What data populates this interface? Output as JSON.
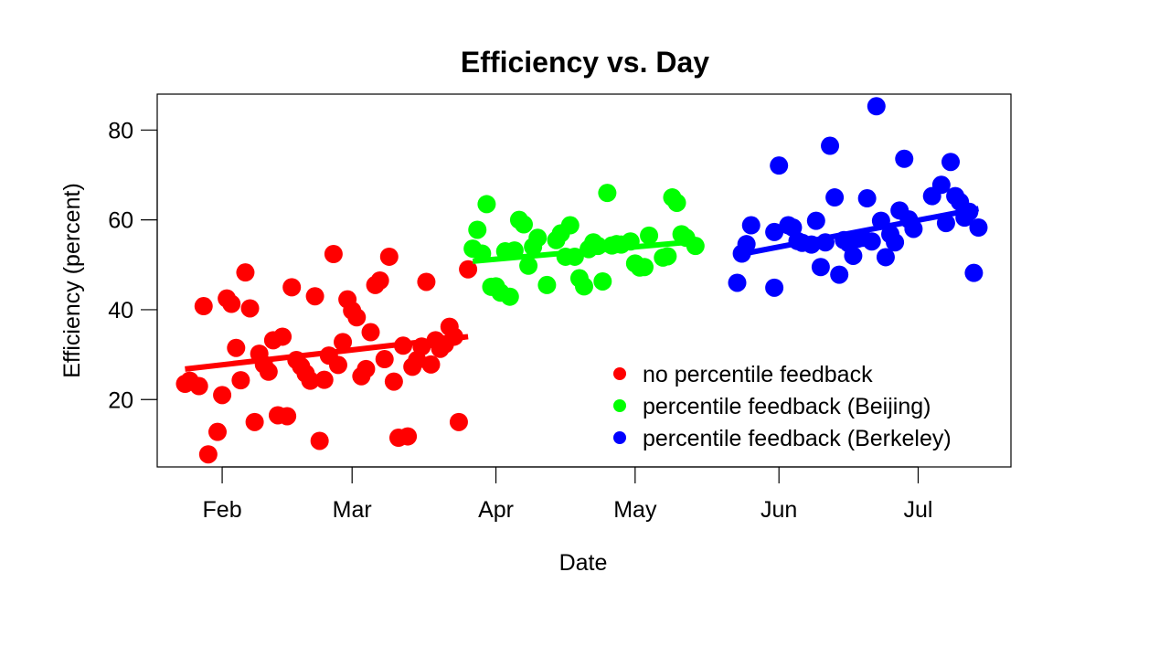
{
  "chart_data": {
    "type": "scatter",
    "title": "Efficiency vs. Day",
    "xlabel": "Date",
    "ylabel": "Efficiency (percent)",
    "x_axis_type": "date",
    "xlim": [
      "2010-01-18",
      "2010-07-21"
    ],
    "ylim": [
      5,
      88
    ],
    "x_ticks": [
      {
        "date": "2010-02-01",
        "label": "Feb"
      },
      {
        "date": "2010-03-01",
        "label": "Mar"
      },
      {
        "date": "2010-04-01",
        "label": "Apr"
      },
      {
        "date": "2010-05-01",
        "label": "May"
      },
      {
        "date": "2010-06-01",
        "label": "Jun"
      },
      {
        "date": "2010-07-01",
        "label": "Jul"
      }
    ],
    "y_ticks": [
      20,
      40,
      60,
      80
    ],
    "grid": false,
    "legend_position": "bottom-right",
    "series": [
      {
        "name": "no percentile feedback",
        "color": "#ff0000",
        "points": [
          [
            "2010-01-24",
            23.5
          ],
          [
            "2010-01-25",
            24.2
          ],
          [
            "2010-01-27",
            23.0
          ],
          [
            "2010-01-28",
            40.8
          ],
          [
            "2010-01-29",
            7.8
          ],
          [
            "2010-01-31",
            12.8
          ],
          [
            "2010-02-01",
            21.0
          ],
          [
            "2010-02-02",
            42.5
          ],
          [
            "2010-02-03",
            41.3
          ],
          [
            "2010-02-04",
            31.5
          ],
          [
            "2010-02-05",
            24.3
          ],
          [
            "2010-02-06",
            48.3
          ],
          [
            "2010-02-07",
            40.3
          ],
          [
            "2010-02-08",
            15.0
          ],
          [
            "2010-02-09",
            30.2
          ],
          [
            "2010-02-10",
            27.8
          ],
          [
            "2010-02-11",
            26.2
          ],
          [
            "2010-02-12",
            33.2
          ],
          [
            "2010-02-13",
            16.5
          ],
          [
            "2010-02-14",
            34.0
          ],
          [
            "2010-02-15",
            16.3
          ],
          [
            "2010-02-16",
            45.0
          ],
          [
            "2010-02-17",
            28.8
          ],
          [
            "2010-02-18",
            27.4
          ],
          [
            "2010-02-19",
            25.8
          ],
          [
            "2010-02-20",
            24.2
          ],
          [
            "2010-02-21",
            43.0
          ],
          [
            "2010-02-22",
            10.8
          ],
          [
            "2010-02-23",
            24.4
          ],
          [
            "2010-02-24",
            29.8
          ],
          [
            "2010-02-25",
            52.4
          ],
          [
            "2010-02-26",
            27.7
          ],
          [
            "2010-02-27",
            32.8
          ],
          [
            "2010-02-28",
            42.3
          ],
          [
            "2010-03-01",
            39.8
          ],
          [
            "2010-03-02",
            38.3
          ],
          [
            "2010-03-03",
            25.2
          ],
          [
            "2010-03-04",
            26.8
          ],
          [
            "2010-03-05",
            35.0
          ],
          [
            "2010-03-06",
            45.5
          ],
          [
            "2010-03-07",
            46.5
          ],
          [
            "2010-03-08",
            29.0
          ],
          [
            "2010-03-09",
            51.8
          ],
          [
            "2010-03-10",
            24.0
          ],
          [
            "2010-03-11",
            11.5
          ],
          [
            "2010-03-12",
            32.0
          ],
          [
            "2010-03-13",
            11.8
          ],
          [
            "2010-03-14",
            27.3
          ],
          [
            "2010-03-15",
            28.8
          ],
          [
            "2010-03-16",
            31.8
          ],
          [
            "2010-03-17",
            46.2
          ],
          [
            "2010-03-18",
            27.8
          ],
          [
            "2010-03-19",
            33.2
          ],
          [
            "2010-03-20",
            31.3
          ],
          [
            "2010-03-21",
            32.3
          ],
          [
            "2010-03-22",
            36.2
          ],
          [
            "2010-03-23",
            34.0
          ],
          [
            "2010-03-24",
            15.0
          ],
          [
            "2010-03-26",
            49.0
          ]
        ],
        "trend": [
          [
            "2010-01-24",
            26.8
          ],
          [
            "2010-03-26",
            34.0
          ]
        ]
      },
      {
        "name": "percentile feedback (Beijing)",
        "color": "#00ff00",
        "points": [
          [
            "2010-03-27",
            53.6
          ],
          [
            "2010-03-28",
            57.8
          ],
          [
            "2010-03-29",
            52.5
          ],
          [
            "2010-03-30",
            63.5
          ],
          [
            "2010-03-31",
            45.1
          ],
          [
            "2010-04-01",
            45.2
          ],
          [
            "2010-04-02",
            43.8
          ],
          [
            "2010-04-03",
            53.0
          ],
          [
            "2010-04-04",
            42.9
          ],
          [
            "2010-04-05",
            53.2
          ],
          [
            "2010-04-06",
            60.0
          ],
          [
            "2010-04-07",
            59.0
          ],
          [
            "2010-04-08",
            49.8
          ],
          [
            "2010-04-09",
            54.0
          ],
          [
            "2010-04-10",
            56.0
          ],
          [
            "2010-04-12",
            45.5
          ],
          [
            "2010-04-14",
            55.5
          ],
          [
            "2010-04-15",
            57.0
          ],
          [
            "2010-04-16",
            51.8
          ],
          [
            "2010-04-17",
            58.8
          ],
          [
            "2010-04-18",
            51.8
          ],
          [
            "2010-04-19",
            47.0
          ],
          [
            "2010-04-20",
            45.2
          ],
          [
            "2010-04-21",
            53.5
          ],
          [
            "2010-04-22",
            55.0
          ],
          [
            "2010-04-23",
            54.2
          ],
          [
            "2010-04-24",
            46.3
          ],
          [
            "2010-04-25",
            66.0
          ],
          [
            "2010-04-26",
            54.3
          ],
          [
            "2010-04-27",
            54.6
          ],
          [
            "2010-04-28",
            54.5
          ],
          [
            "2010-04-30",
            55.2
          ],
          [
            "2010-05-01",
            50.3
          ],
          [
            "2010-05-02",
            49.4
          ],
          [
            "2010-05-03",
            49.5
          ],
          [
            "2010-05-04",
            56.5
          ],
          [
            "2010-05-07",
            51.6
          ],
          [
            "2010-05-08",
            51.9
          ],
          [
            "2010-05-09",
            65.0
          ],
          [
            "2010-05-10",
            63.8
          ],
          [
            "2010-05-11",
            56.8
          ],
          [
            "2010-05-12",
            56.0
          ],
          [
            "2010-05-14",
            54.2
          ]
        ],
        "trend": [
          [
            "2010-03-27",
            50.8
          ],
          [
            "2010-05-12",
            55.0
          ]
        ]
      },
      {
        "name": "percentile feedback (Berkeley)",
        "color": "#0000ff",
        "points": [
          [
            "2010-05-23",
            46.0
          ],
          [
            "2010-05-24",
            52.5
          ],
          [
            "2010-05-25",
            54.6
          ],
          [
            "2010-05-26",
            58.8
          ],
          [
            "2010-05-31",
            57.3
          ],
          [
            "2010-05-31",
            44.9
          ],
          [
            "2010-06-01",
            72.1
          ],
          [
            "2010-06-03",
            58.8
          ],
          [
            "2010-06-04",
            58.3
          ],
          [
            "2010-06-05",
            55.3
          ],
          [
            "2010-06-06",
            54.9
          ],
          [
            "2010-06-08",
            54.5
          ],
          [
            "2010-06-09",
            59.8
          ],
          [
            "2010-06-10",
            49.5
          ],
          [
            "2010-06-11",
            55.0
          ],
          [
            "2010-06-12",
            76.5
          ],
          [
            "2010-06-13",
            65.0
          ],
          [
            "2010-06-14",
            47.8
          ],
          [
            "2010-06-15",
            55.5
          ],
          [
            "2010-06-16",
            54.8
          ],
          [
            "2010-06-17",
            52.0
          ],
          [
            "2010-06-18",
            55.8
          ],
          [
            "2010-06-19",
            56.0
          ],
          [
            "2010-06-20",
            64.8
          ],
          [
            "2010-06-21",
            55.2
          ],
          [
            "2010-06-22",
            85.3
          ],
          [
            "2010-06-23",
            59.8
          ],
          [
            "2010-06-24",
            51.7
          ],
          [
            "2010-06-25",
            56.8
          ],
          [
            "2010-06-26",
            55.0
          ],
          [
            "2010-06-27",
            62.1
          ],
          [
            "2010-06-28",
            73.6
          ],
          [
            "2010-06-29",
            60.1
          ],
          [
            "2010-06-30",
            58.0
          ],
          [
            "2010-07-04",
            65.3
          ],
          [
            "2010-07-06",
            67.8
          ],
          [
            "2010-07-07",
            59.3
          ],
          [
            "2010-07-08",
            72.9
          ],
          [
            "2010-07-09",
            65.3
          ],
          [
            "2010-07-10",
            64.0
          ],
          [
            "2010-07-11",
            60.5
          ],
          [
            "2010-07-12",
            61.8
          ],
          [
            "2010-07-13",
            48.2
          ],
          [
            "2010-07-14",
            58.3
          ]
        ],
        "trend": [
          [
            "2010-05-24",
            52.4
          ],
          [
            "2010-07-14",
            62.5
          ]
        ]
      }
    ]
  }
}
